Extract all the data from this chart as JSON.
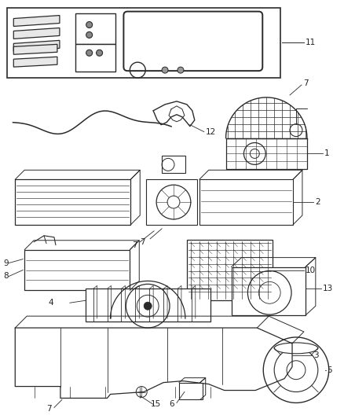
{
  "bg_color": "#ffffff",
  "line_color": "#2a2a2a",
  "text_color": "#222222",
  "font_size": 7.5,
  "figsize": [
    4.38,
    5.33
  ],
  "dpi": 100
}
